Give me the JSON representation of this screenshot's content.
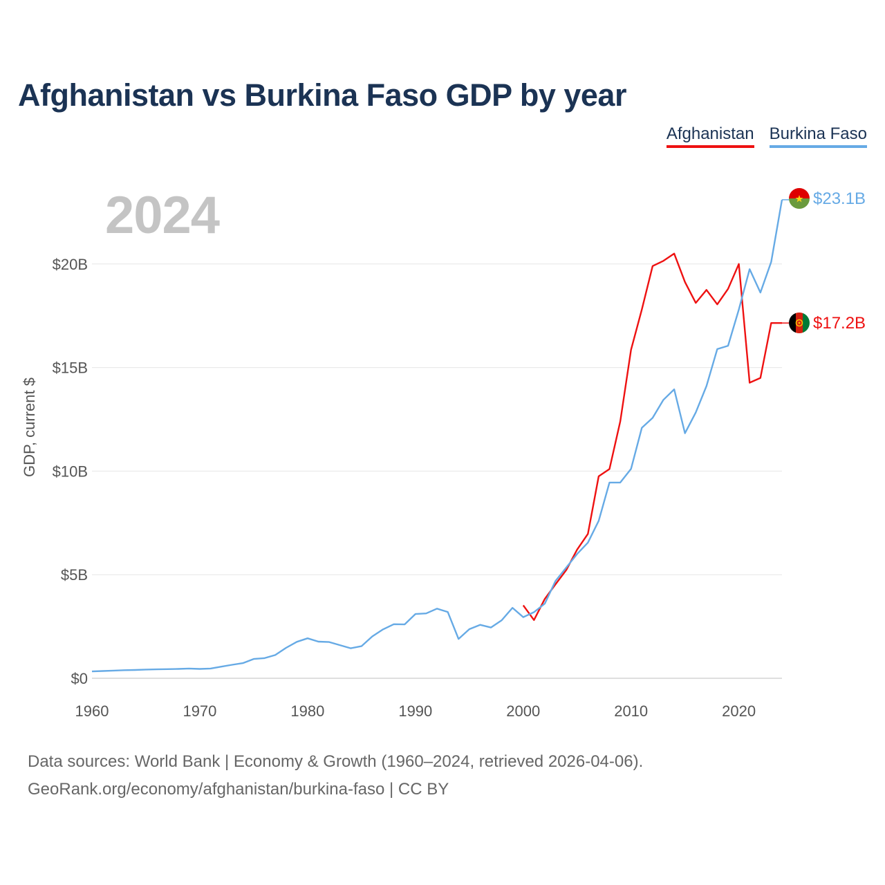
{
  "title": "Afghanistan vs Burkina Faso GDP by year",
  "year_display": "2024",
  "legend": [
    {
      "name": "Afghanistan",
      "color": "#ee1111"
    },
    {
      "name": "Burkina Faso",
      "color": "#66aae5"
    }
  ],
  "source": {
    "line1": "Data sources: World Bank | Economy & Growth (1960–2024, retrieved 2026-04-06).",
    "line2": "GeoRank.org/economy/afghanistan/burkina-faso | CC BY"
  },
  "chart_data": {
    "type": "line",
    "xlabel": "",
    "ylabel": "GDP, current $",
    "xlim": [
      1960,
      2024
    ],
    "ylim": [
      0,
      23.1
    ],
    "x_ticks": [
      1960,
      1970,
      1980,
      1990,
      2000,
      2010,
      2020
    ],
    "y_ticks": [
      0,
      5,
      10,
      15,
      20
    ],
    "y_tick_labels": [
      "$0",
      "$5B",
      "$10B",
      "$15B",
      "$20B"
    ],
    "grid": "horizontal",
    "legend_position": "top-right",
    "series": [
      {
        "name": "Afghanistan",
        "color": "#ee1111",
        "end_label": "$17.2B",
        "points": [
          [
            2000,
            3.52
          ],
          [
            2001,
            2.81
          ],
          [
            2002,
            3.83
          ],
          [
            2003,
            4.54
          ],
          [
            2004,
            5.23
          ],
          [
            2005,
            6.21
          ],
          [
            2006,
            6.97
          ],
          [
            2007,
            9.75
          ],
          [
            2008,
            10.1
          ],
          [
            2009,
            12.4
          ],
          [
            2010,
            15.86
          ],
          [
            2011,
            17.8
          ],
          [
            2012,
            19.9
          ],
          [
            2013,
            20.15
          ],
          [
            2014,
            20.5
          ],
          [
            2015,
            19.13
          ],
          [
            2016,
            18.12
          ],
          [
            2017,
            18.75
          ],
          [
            2018,
            18.05
          ],
          [
            2019,
            18.8
          ],
          [
            2020,
            20.0
          ],
          [
            2021,
            14.27
          ],
          [
            2022,
            14.5
          ],
          [
            2023,
            17.15
          ],
          [
            2024,
            17.15
          ]
        ]
      },
      {
        "name": "Burkina Faso",
        "color": "#66aae5",
        "end_label": "$23.1B",
        "points": [
          [
            1960,
            0.33
          ],
          [
            1961,
            0.35
          ],
          [
            1962,
            0.37
          ],
          [
            1963,
            0.39
          ],
          [
            1964,
            0.4
          ],
          [
            1965,
            0.42
          ],
          [
            1966,
            0.43
          ],
          [
            1967,
            0.44
          ],
          [
            1968,
            0.45
          ],
          [
            1969,
            0.47
          ],
          [
            1970,
            0.45
          ],
          [
            1971,
            0.47
          ],
          [
            1972,
            0.56
          ],
          [
            1973,
            0.65
          ],
          [
            1974,
            0.73
          ],
          [
            1975,
            0.93
          ],
          [
            1976,
            0.97
          ],
          [
            1977,
            1.12
          ],
          [
            1978,
            1.47
          ],
          [
            1979,
            1.76
          ],
          [
            1980,
            1.93
          ],
          [
            1981,
            1.77
          ],
          [
            1982,
            1.75
          ],
          [
            1983,
            1.6
          ],
          [
            1984,
            1.45
          ],
          [
            1985,
            1.55
          ],
          [
            1986,
            2.02
          ],
          [
            1987,
            2.36
          ],
          [
            1988,
            2.61
          ],
          [
            1989,
            2.6
          ],
          [
            1990,
            3.1
          ],
          [
            1991,
            3.13
          ],
          [
            1992,
            3.36
          ],
          [
            1993,
            3.2
          ],
          [
            1994,
            1.9
          ],
          [
            1995,
            2.37
          ],
          [
            1996,
            2.58
          ],
          [
            1997,
            2.45
          ],
          [
            1998,
            2.8
          ],
          [
            1999,
            3.4
          ],
          [
            2000,
            2.95
          ],
          [
            2001,
            3.19
          ],
          [
            2002,
            3.6
          ],
          [
            2003,
            4.7
          ],
          [
            2004,
            5.35
          ],
          [
            2005,
            6.0
          ],
          [
            2006,
            6.55
          ],
          [
            2007,
            7.6
          ],
          [
            2008,
            9.45
          ],
          [
            2009,
            9.45
          ],
          [
            2010,
            10.11
          ],
          [
            2011,
            12.09
          ],
          [
            2012,
            12.57
          ],
          [
            2013,
            13.44
          ],
          [
            2014,
            13.95
          ],
          [
            2015,
            11.83
          ],
          [
            2016,
            12.83
          ],
          [
            2017,
            14.11
          ],
          [
            2018,
            15.89
          ],
          [
            2019,
            16.05
          ],
          [
            2020,
            17.8
          ],
          [
            2021,
            19.75
          ],
          [
            2022,
            18.62
          ],
          [
            2023,
            20.1
          ],
          [
            2024,
            23.1
          ]
        ]
      }
    ]
  }
}
